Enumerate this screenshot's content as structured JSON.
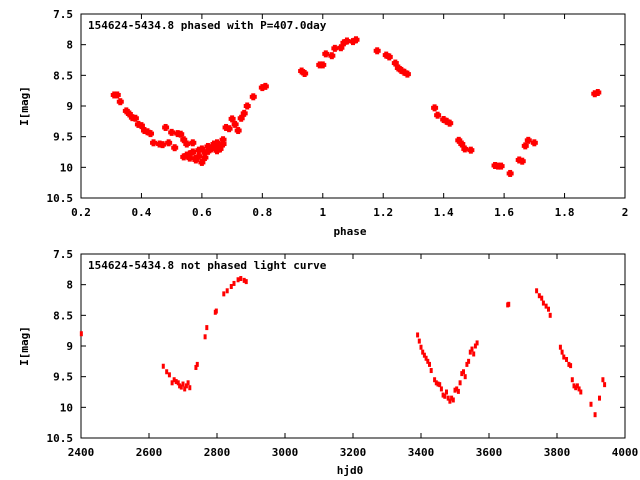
{
  "chart_data": [
    {
      "type": "scatter",
      "title": "154624-5434.8 phased with P=407.0day",
      "xlabel": "phase",
      "ylabel": "I[mag]",
      "xlim": [
        0.2,
        2
      ],
      "ylim": [
        7.5,
        10.5
      ],
      "y_inverted": true,
      "xticks": [
        "0.2",
        "0.4",
        "0.6",
        "0.8",
        "1",
        "1.2",
        "1.4",
        "1.6",
        "1.8",
        "2"
      ],
      "xtick_values": [
        0.2,
        0.4,
        0.6,
        0.8,
        1.0,
        1.2,
        1.4,
        1.6,
        1.8,
        2.0
      ],
      "yticks": [
        "7.5",
        "8",
        "8.5",
        "9",
        "9.5",
        "10",
        "10.5"
      ],
      "ytick_values": [
        7.5,
        8.0,
        8.5,
        9.0,
        9.5,
        10.0,
        10.5
      ],
      "grid": false,
      "marker_color": "#ff0000",
      "series": [
        {
          "x": [
            0.31,
            0.32,
            0.33,
            0.35,
            0.36,
            0.37,
            0.38,
            0.39,
            0.4,
            0.41,
            0.42,
            0.43,
            0.44,
            0.46,
            0.47,
            0.48,
            0.49,
            0.5,
            0.51,
            0.52,
            0.53,
            0.54,
            0.54,
            0.55,
            0.55,
            0.56,
            0.56,
            0.57,
            0.57,
            0.58,
            0.58,
            0.59,
            0.59,
            0.6,
            0.6,
            0.61,
            0.61,
            0.62,
            0.62,
            0.63,
            0.63,
            0.64,
            0.64,
            0.65,
            0.65,
            0.66,
            0.66,
            0.67,
            0.67,
            0.68,
            0.69,
            0.7,
            0.71,
            0.72,
            0.73,
            0.74,
            0.75,
            0.77,
            0.8,
            0.81,
            0.93,
            0.94,
            0.99,
            1.0,
            1.01,
            1.03,
            1.04,
            1.06,
            1.07,
            1.08,
            1.1,
            1.11,
            1.18,
            1.21,
            1.22,
            1.24,
            1.25,
            1.26,
            1.27,
            1.28,
            1.37,
            1.38,
            1.4,
            1.41,
            1.42,
            1.45,
            1.46,
            1.47,
            1.49,
            1.57,
            1.58,
            1.59,
            1.62,
            1.65,
            1.66,
            1.67,
            1.68,
            1.7,
            1.9,
            1.91
          ],
          "y": [
            8.82,
            8.82,
            8.93,
            9.08,
            9.13,
            9.19,
            9.2,
            9.3,
            9.32,
            9.4,
            9.42,
            9.45,
            9.6,
            9.62,
            9.63,
            9.35,
            9.6,
            9.43,
            9.68,
            9.45,
            9.46,
            9.55,
            9.83,
            9.8,
            9.62,
            9.85,
            9.78,
            9.6,
            9.75,
            9.88,
            9.85,
            9.72,
            9.82,
            9.7,
            9.92,
            9.76,
            9.84,
            9.66,
            9.74,
            9.7,
            9.68,
            9.68,
            9.62,
            9.73,
            9.6,
            9.65,
            9.7,
            9.55,
            9.62,
            9.35,
            9.37,
            9.21,
            9.3,
            9.4,
            9.2,
            9.12,
            9.0,
            8.85,
            8.7,
            8.68,
            8.43,
            8.47,
            8.33,
            8.33,
            8.15,
            8.18,
            8.06,
            8.05,
            7.97,
            7.94,
            7.95,
            7.92,
            8.1,
            8.17,
            8.2,
            8.3,
            8.38,
            8.42,
            8.45,
            8.48,
            9.03,
            9.15,
            9.22,
            9.25,
            9.28,
            9.56,
            9.62,
            9.7,
            9.72,
            9.97,
            9.98,
            9.98,
            10.1,
            9.88,
            9.9,
            9.65,
            9.56,
            9.6,
            8.8,
            8.78
          ]
        }
      ]
    },
    {
      "type": "scatter",
      "title": "154624-5434.8 not phased light curve",
      "xlabel": "hjd0",
      "ylabel": "I[mag]",
      "xlim": [
        2400,
        4000
      ],
      "ylim": [
        7.5,
        10.5
      ],
      "y_inverted": true,
      "xticks": [
        "2400",
        "2600",
        "2800",
        "3000",
        "3200",
        "3400",
        "3600",
        "3800",
        "4000"
      ],
      "xtick_values": [
        2400,
        2600,
        2800,
        3000,
        3200,
        3400,
        3600,
        3800,
        4000
      ],
      "yticks": [
        "7.5",
        "8",
        "8.5",
        "9",
        "9.5",
        "10",
        "10.5"
      ],
      "ytick_values": [
        7.5,
        8.0,
        8.5,
        9.0,
        9.5,
        10.0,
        10.5
      ],
      "grid": false,
      "marker_color": "#ff0000",
      "series": [
        {
          "x": [
            2401,
            2642,
            2652,
            2660,
            2668,
            2674,
            2680,
            2686,
            2690,
            2695,
            2700,
            2705,
            2710,
            2715,
            2720,
            2738,
            2742,
            2765,
            2770,
            2795,
            2798,
            2820,
            2830,
            2842,
            2850,
            2862,
            2870,
            2880,
            2886,
            3390,
            3395,
            3400,
            3405,
            3410,
            3415,
            3420,
            3425,
            3430,
            3440,
            3445,
            3450,
            3455,
            3460,
            3465,
            3470,
            3475,
            3480,
            3485,
            3490,
            3495,
            3500,
            3505,
            3510,
            3515,
            3520,
            3525,
            3530,
            3535,
            3540,
            3545,
            3550,
            3555,
            3560,
            3565,
            3655,
            3658,
            3740,
            3748,
            3755,
            3760,
            3768,
            3775,
            3780,
            3810,
            3815,
            3820,
            3828,
            3835,
            3840,
            3845,
            3850,
            3855,
            3860,
            3865,
            3870,
            3900,
            3912,
            3925,
            3935,
            3940
          ],
          "y": [
            8.8,
            9.33,
            9.42,
            9.47,
            9.6,
            9.55,
            9.58,
            9.6,
            9.65,
            9.67,
            9.62,
            9.7,
            9.65,
            9.6,
            9.68,
            9.35,
            9.3,
            8.85,
            8.7,
            8.45,
            8.43,
            8.15,
            8.1,
            8.03,
            7.98,
            7.92,
            7.9,
            7.93,
            7.95,
            8.82,
            8.92,
            9.02,
            9.1,
            9.15,
            9.2,
            9.25,
            9.3,
            9.4,
            9.55,
            9.6,
            9.62,
            9.63,
            9.7,
            9.8,
            9.82,
            9.75,
            9.85,
            9.9,
            9.85,
            9.88,
            9.72,
            9.7,
            9.74,
            9.6,
            9.45,
            9.42,
            9.5,
            9.3,
            9.25,
            9.1,
            9.05,
            9.13,
            9.0,
            8.95,
            8.33,
            8.32,
            8.1,
            8.18,
            8.22,
            8.3,
            8.35,
            8.4,
            8.5,
            9.02,
            9.1,
            9.18,
            9.22,
            9.3,
            9.32,
            9.55,
            9.65,
            9.68,
            9.65,
            9.7,
            9.75,
            9.95,
            10.12,
            9.85,
            9.55,
            9.63
          ]
        }
      ]
    }
  ]
}
